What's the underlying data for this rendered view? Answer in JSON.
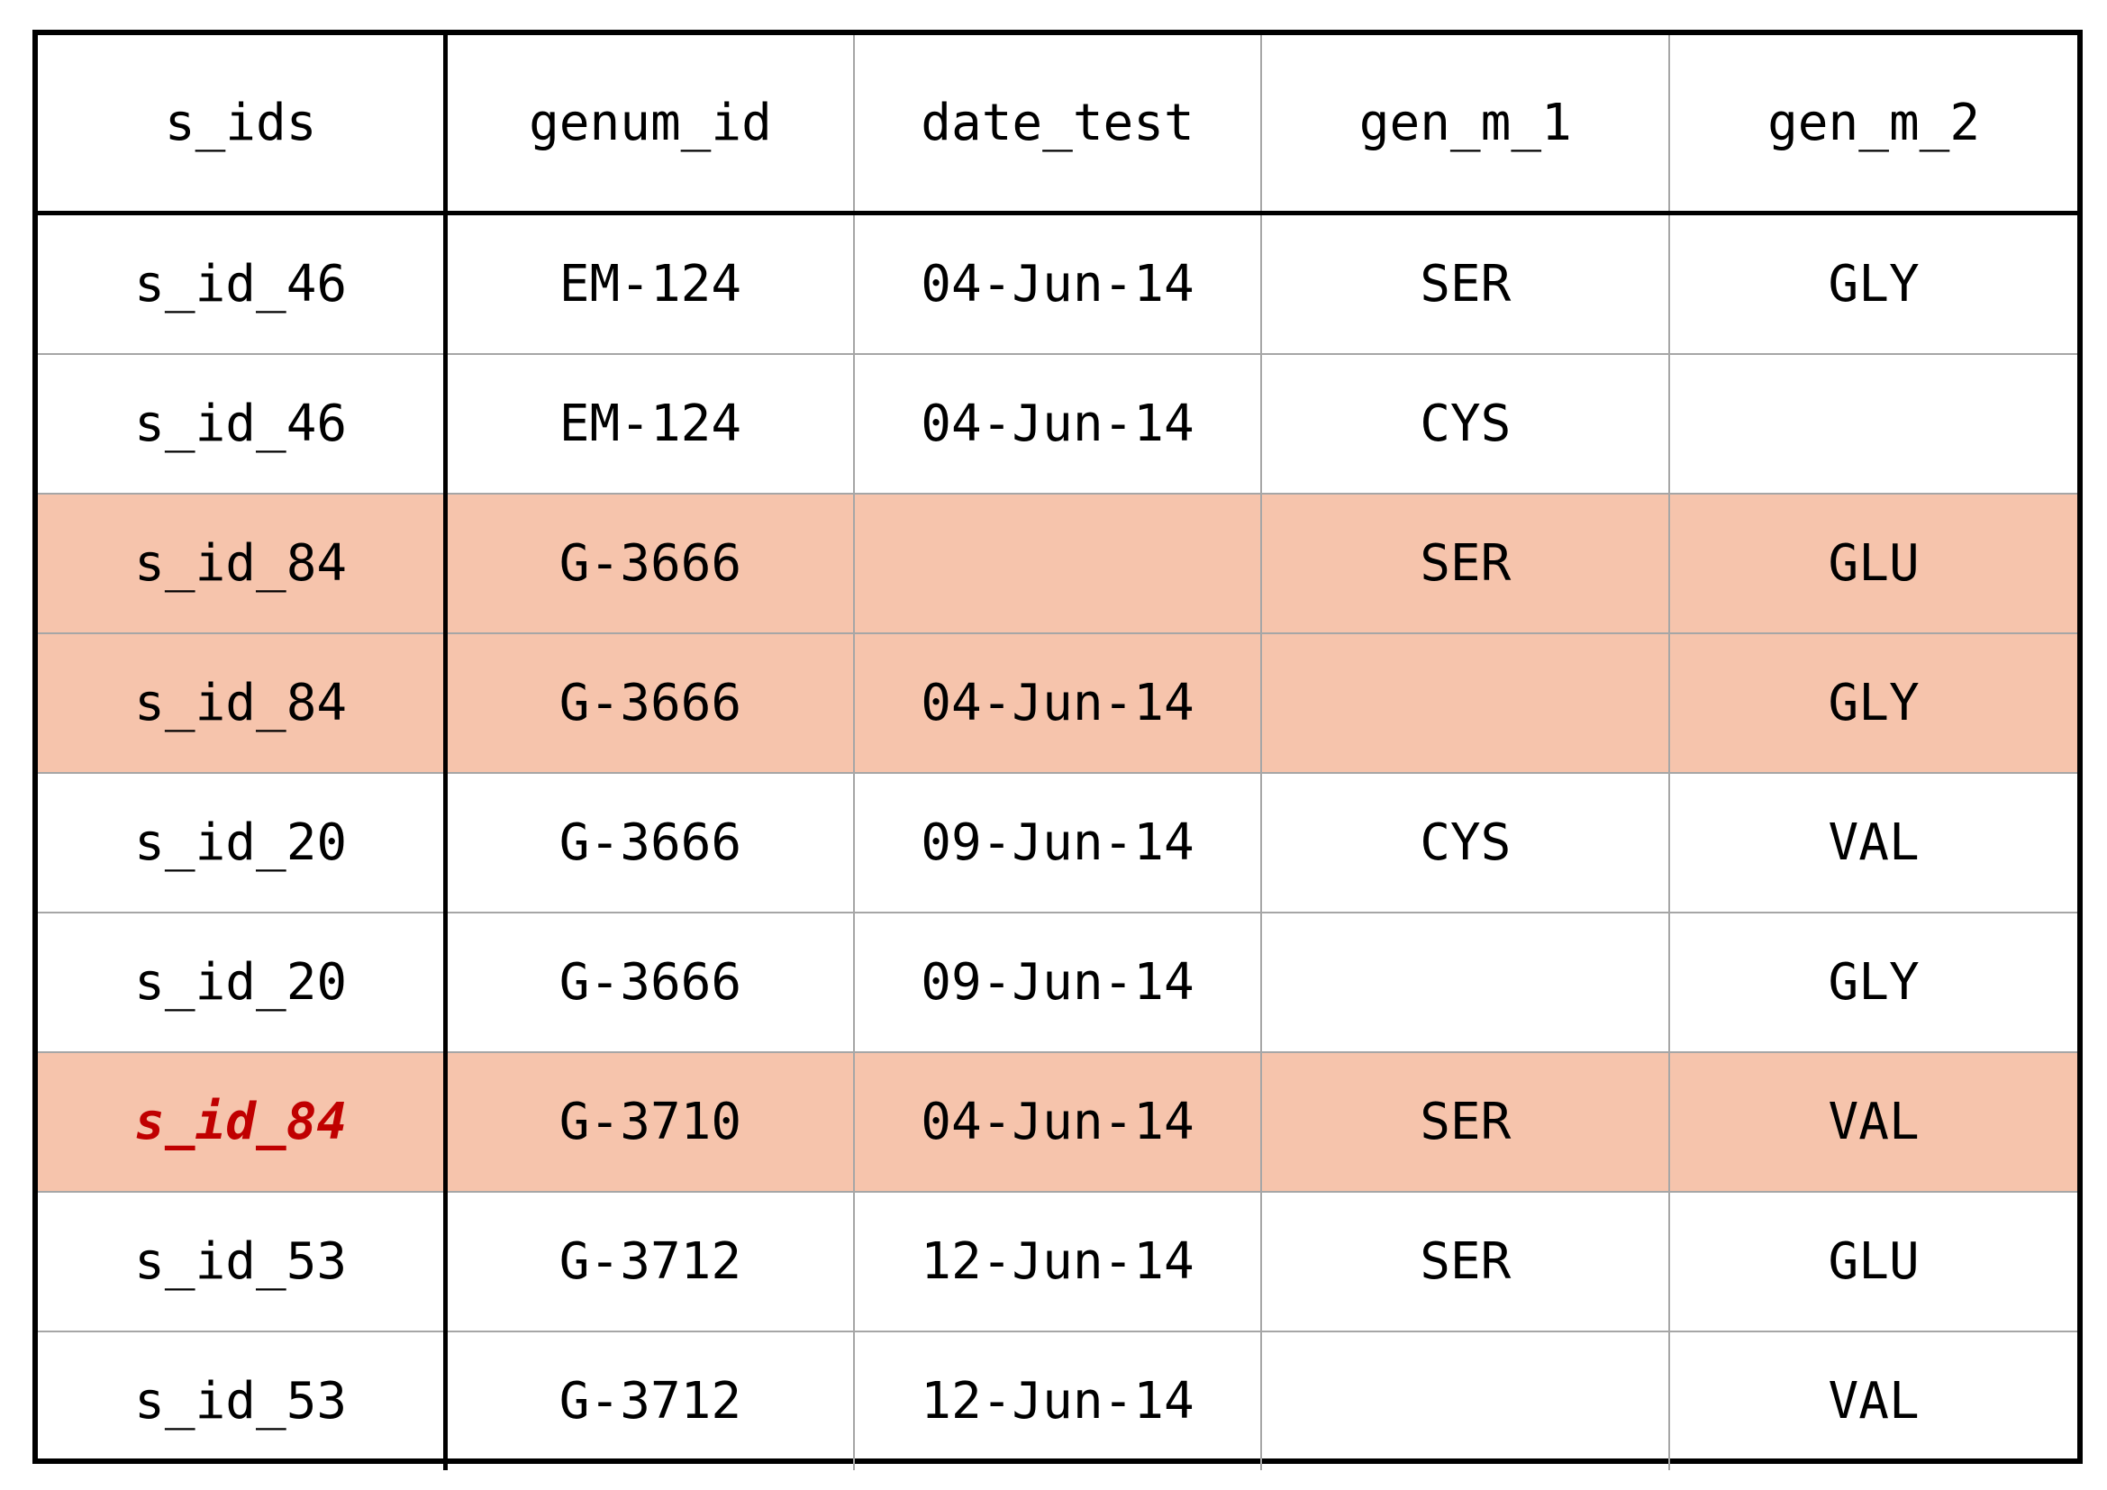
{
  "colors": {
    "highlight_row": "#f6c4ac",
    "flag_text": "#c00000",
    "outer_border": "#000000",
    "inner_border": "#a6a6a6"
  },
  "table": {
    "headers": [
      "s_ids",
      "genum_id",
      "date_test",
      "gen_m_1",
      "gen_m_2"
    ],
    "rows": [
      {
        "cells": [
          "s_id_46",
          "EM-124",
          "04-Jun-14",
          "SER",
          "GLY"
        ],
        "highlight": false,
        "flag_first": false
      },
      {
        "cells": [
          "s_id_46",
          "EM-124",
          "04-Jun-14",
          "CYS",
          ""
        ],
        "highlight": false,
        "flag_first": false
      },
      {
        "cells": [
          "s_id_84",
          "G-3666",
          "",
          "SER",
          "GLU"
        ],
        "highlight": true,
        "flag_first": false
      },
      {
        "cells": [
          "s_id_84",
          "G-3666",
          "04-Jun-14",
          "",
          "GLY"
        ],
        "highlight": true,
        "flag_first": false
      },
      {
        "cells": [
          "s_id_20",
          "G-3666",
          "09-Jun-14",
          "CYS",
          "VAL"
        ],
        "highlight": false,
        "flag_first": false
      },
      {
        "cells": [
          "s_id_20",
          "G-3666",
          "09-Jun-14",
          "",
          "GLY"
        ],
        "highlight": false,
        "flag_first": false
      },
      {
        "cells": [
          "s_id_84",
          "G-3710",
          "04-Jun-14",
          "SER",
          "VAL"
        ],
        "highlight": true,
        "flag_first": true
      },
      {
        "cells": [
          "s_id_53",
          "G-3712",
          "12-Jun-14",
          "SER",
          "GLU"
        ],
        "highlight": false,
        "flag_first": false
      },
      {
        "cells": [
          "s_id_53",
          "G-3712",
          "12-Jun-14",
          "",
          "VAL"
        ],
        "highlight": false,
        "flag_first": false
      }
    ]
  }
}
